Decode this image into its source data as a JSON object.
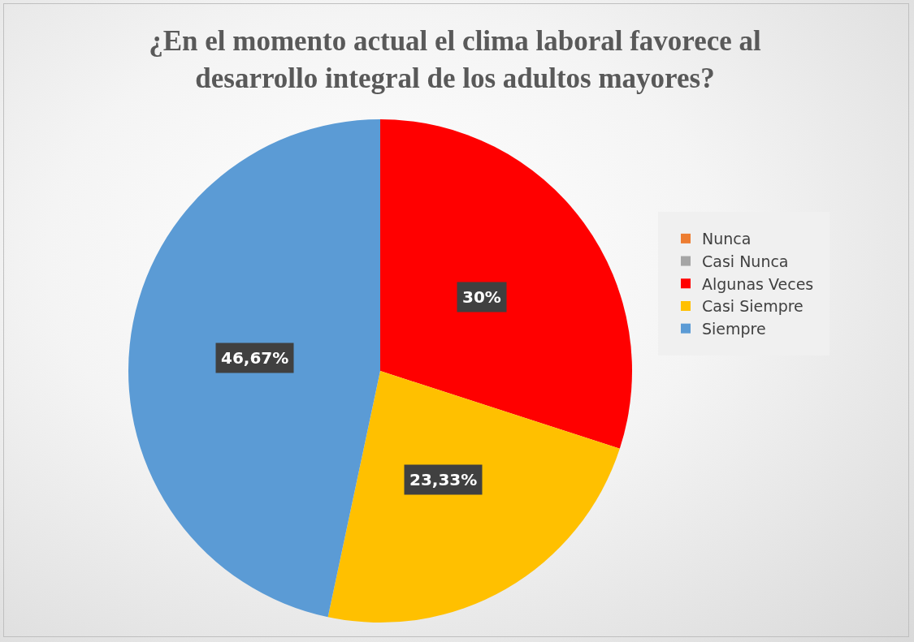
{
  "chart_data": {
    "type": "pie",
    "title": "¿En el momento actual el clima laboral favorece al desarrollo integral de los adultos mayores?",
    "categories": [
      "Nunca",
      "Casi Nunca",
      "Algunas Veces",
      "Casi Siempre",
      "Siempre"
    ],
    "values": [
      0,
      0,
      30,
      23.33,
      46.67
    ],
    "value_labels": [
      null,
      null,
      "30%",
      "23,33%",
      "46,67%"
    ],
    "colors": [
      "#ed7d31",
      "#a5a5a5",
      "#ff0000",
      "#ffc000",
      "#5b9bd5"
    ],
    "legend": "right"
  }
}
